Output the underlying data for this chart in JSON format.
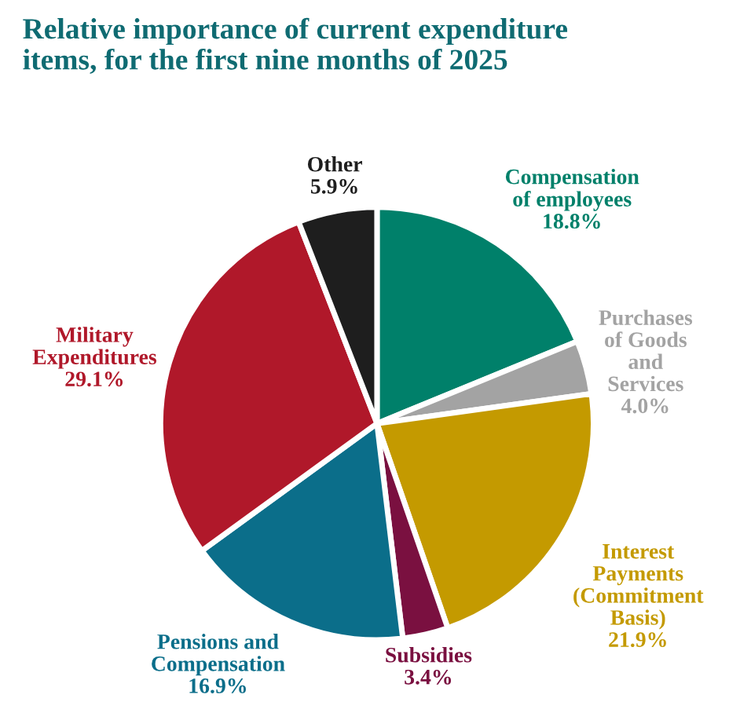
{
  "chart_data": {
    "type": "pie",
    "title": "Relative importance of current expenditure\nitems, for the first nine months of 2025",
    "categories": [
      "Compensation\nof employees",
      "Purchases\nof Goods\nand\nServices",
      "Interest\nPayments\n(Commitment\nBasis)",
      "Subsidies",
      "Pensions and\nCompensation",
      "Military\nExpenditures",
      "Other"
    ],
    "values": [
      18.8,
      4.0,
      21.9,
      3.4,
      16.9,
      29.1,
      5.9
    ],
    "colors": [
      "#00806a",
      "#a3a3a3",
      "#c49a00",
      "#7a1040",
      "#0b6e8a",
      "#b0182a",
      "#1e1e1e"
    ],
    "value_labels": [
      "18.8%",
      "4.0%",
      "21.9%",
      "3.4%",
      "16.9%",
      "29.1%",
      "5.9%"
    ]
  }
}
